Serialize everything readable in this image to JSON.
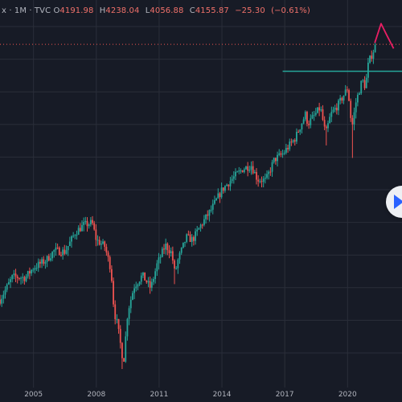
{
  "legend": {
    "symbol_fragment": "x",
    "interval": "1M",
    "source": "TVC",
    "open_label": "O",
    "open": "4191.98",
    "high_label": "H",
    "high": "4238.04",
    "low_label": "L",
    "low": "4056.88",
    "close_label": "C",
    "close": "4155.87",
    "change": "−25.30",
    "change_pct": "(−0.61%)"
  },
  "colors": {
    "background": "#171b26",
    "grid": "#2a2e39",
    "up": "#26a69a",
    "down": "#ef5350",
    "last_price_line": "#ef5350",
    "horizontal_line": "#26a69a",
    "projection_line": "#e91e63",
    "axis_text": "#b2b5be"
  },
  "controls": {
    "play_icon": "play-icon"
  },
  "chart_data": {
    "type": "candlestick",
    "interval": "1M",
    "x_tick_labels": [
      "2005",
      "2008",
      "2011",
      "2014",
      "2017",
      "2020"
    ],
    "x_range": [
      2003.4,
      2022.6
    ],
    "y_range": [
      600,
      4700
    ],
    "log_scale": true,
    "grid": true,
    "last_price": 4155.87,
    "horizontal_line_level": 3570,
    "horizontal_line_start_year": 2016.9,
    "projection_path": [
      [
        2021.3,
        4190
      ],
      [
        2021.6,
        4670
      ],
      [
        2021.85,
        4400
      ],
      [
        2022.2,
        4060
      ]
    ],
    "anchor_closes": [
      [
        2003.4,
        985
      ],
      [
        2004.0,
        1120
      ],
      [
        2004.6,
        1115
      ],
      [
        2005.0,
        1180
      ],
      [
        2005.6,
        1230
      ],
      [
        2006.0,
        1300
      ],
      [
        2006.5,
        1290
      ],
      [
        2007.0,
        1440
      ],
      [
        2007.4,
        1500
      ],
      [
        2007.8,
        1520
      ],
      [
        2008.0,
        1380
      ],
      [
        2008.4,
        1330
      ],
      [
        2008.7,
        1170
      ],
      [
        2008.85,
        920
      ],
      [
        2009.0,
        860
      ],
      [
        2009.2,
        740
      ],
      [
        2009.3,
        690
      ],
      [
        2009.5,
        920
      ],
      [
        2009.8,
        1060
      ],
      [
        2010.2,
        1130
      ],
      [
        2010.4,
        1090
      ],
      [
        2010.6,
        1050
      ],
      [
        2010.9,
        1200
      ],
      [
        2011.3,
        1340
      ],
      [
        2011.6,
        1280
      ],
      [
        2011.75,
        1140
      ],
      [
        2011.9,
        1230
      ],
      [
        2012.3,
        1400
      ],
      [
        2012.6,
        1380
      ],
      [
        2013.0,
        1500
      ],
      [
        2013.5,
        1640
      ],
      [
        2014.0,
        1830
      ],
      [
        2014.5,
        1950
      ],
      [
        2015.0,
        2060
      ],
      [
        2015.4,
        2100
      ],
      [
        2015.7,
        1940
      ],
      [
        2016.1,
        1930
      ],
      [
        2016.5,
        2170
      ],
      [
        2016.9,
        2240
      ],
      [
        2017.5,
        2450
      ],
      [
        2018.0,
        2810
      ],
      [
        2018.1,
        2650
      ],
      [
        2018.7,
        2910
      ],
      [
        2018.95,
        2500
      ],
      [
        2019.2,
        2800
      ],
      [
        2019.6,
        2980
      ],
      [
        2020.0,
        3250
      ],
      [
        2020.1,
        2950
      ],
      [
        2020.2,
        2580
      ],
      [
        2020.4,
        3000
      ],
      [
        2020.7,
        3400
      ],
      [
        2020.85,
        3270
      ],
      [
        2021.0,
        3750
      ],
      [
        2021.2,
        3970
      ],
      [
        2021.35,
        4150
      ]
    ]
  }
}
